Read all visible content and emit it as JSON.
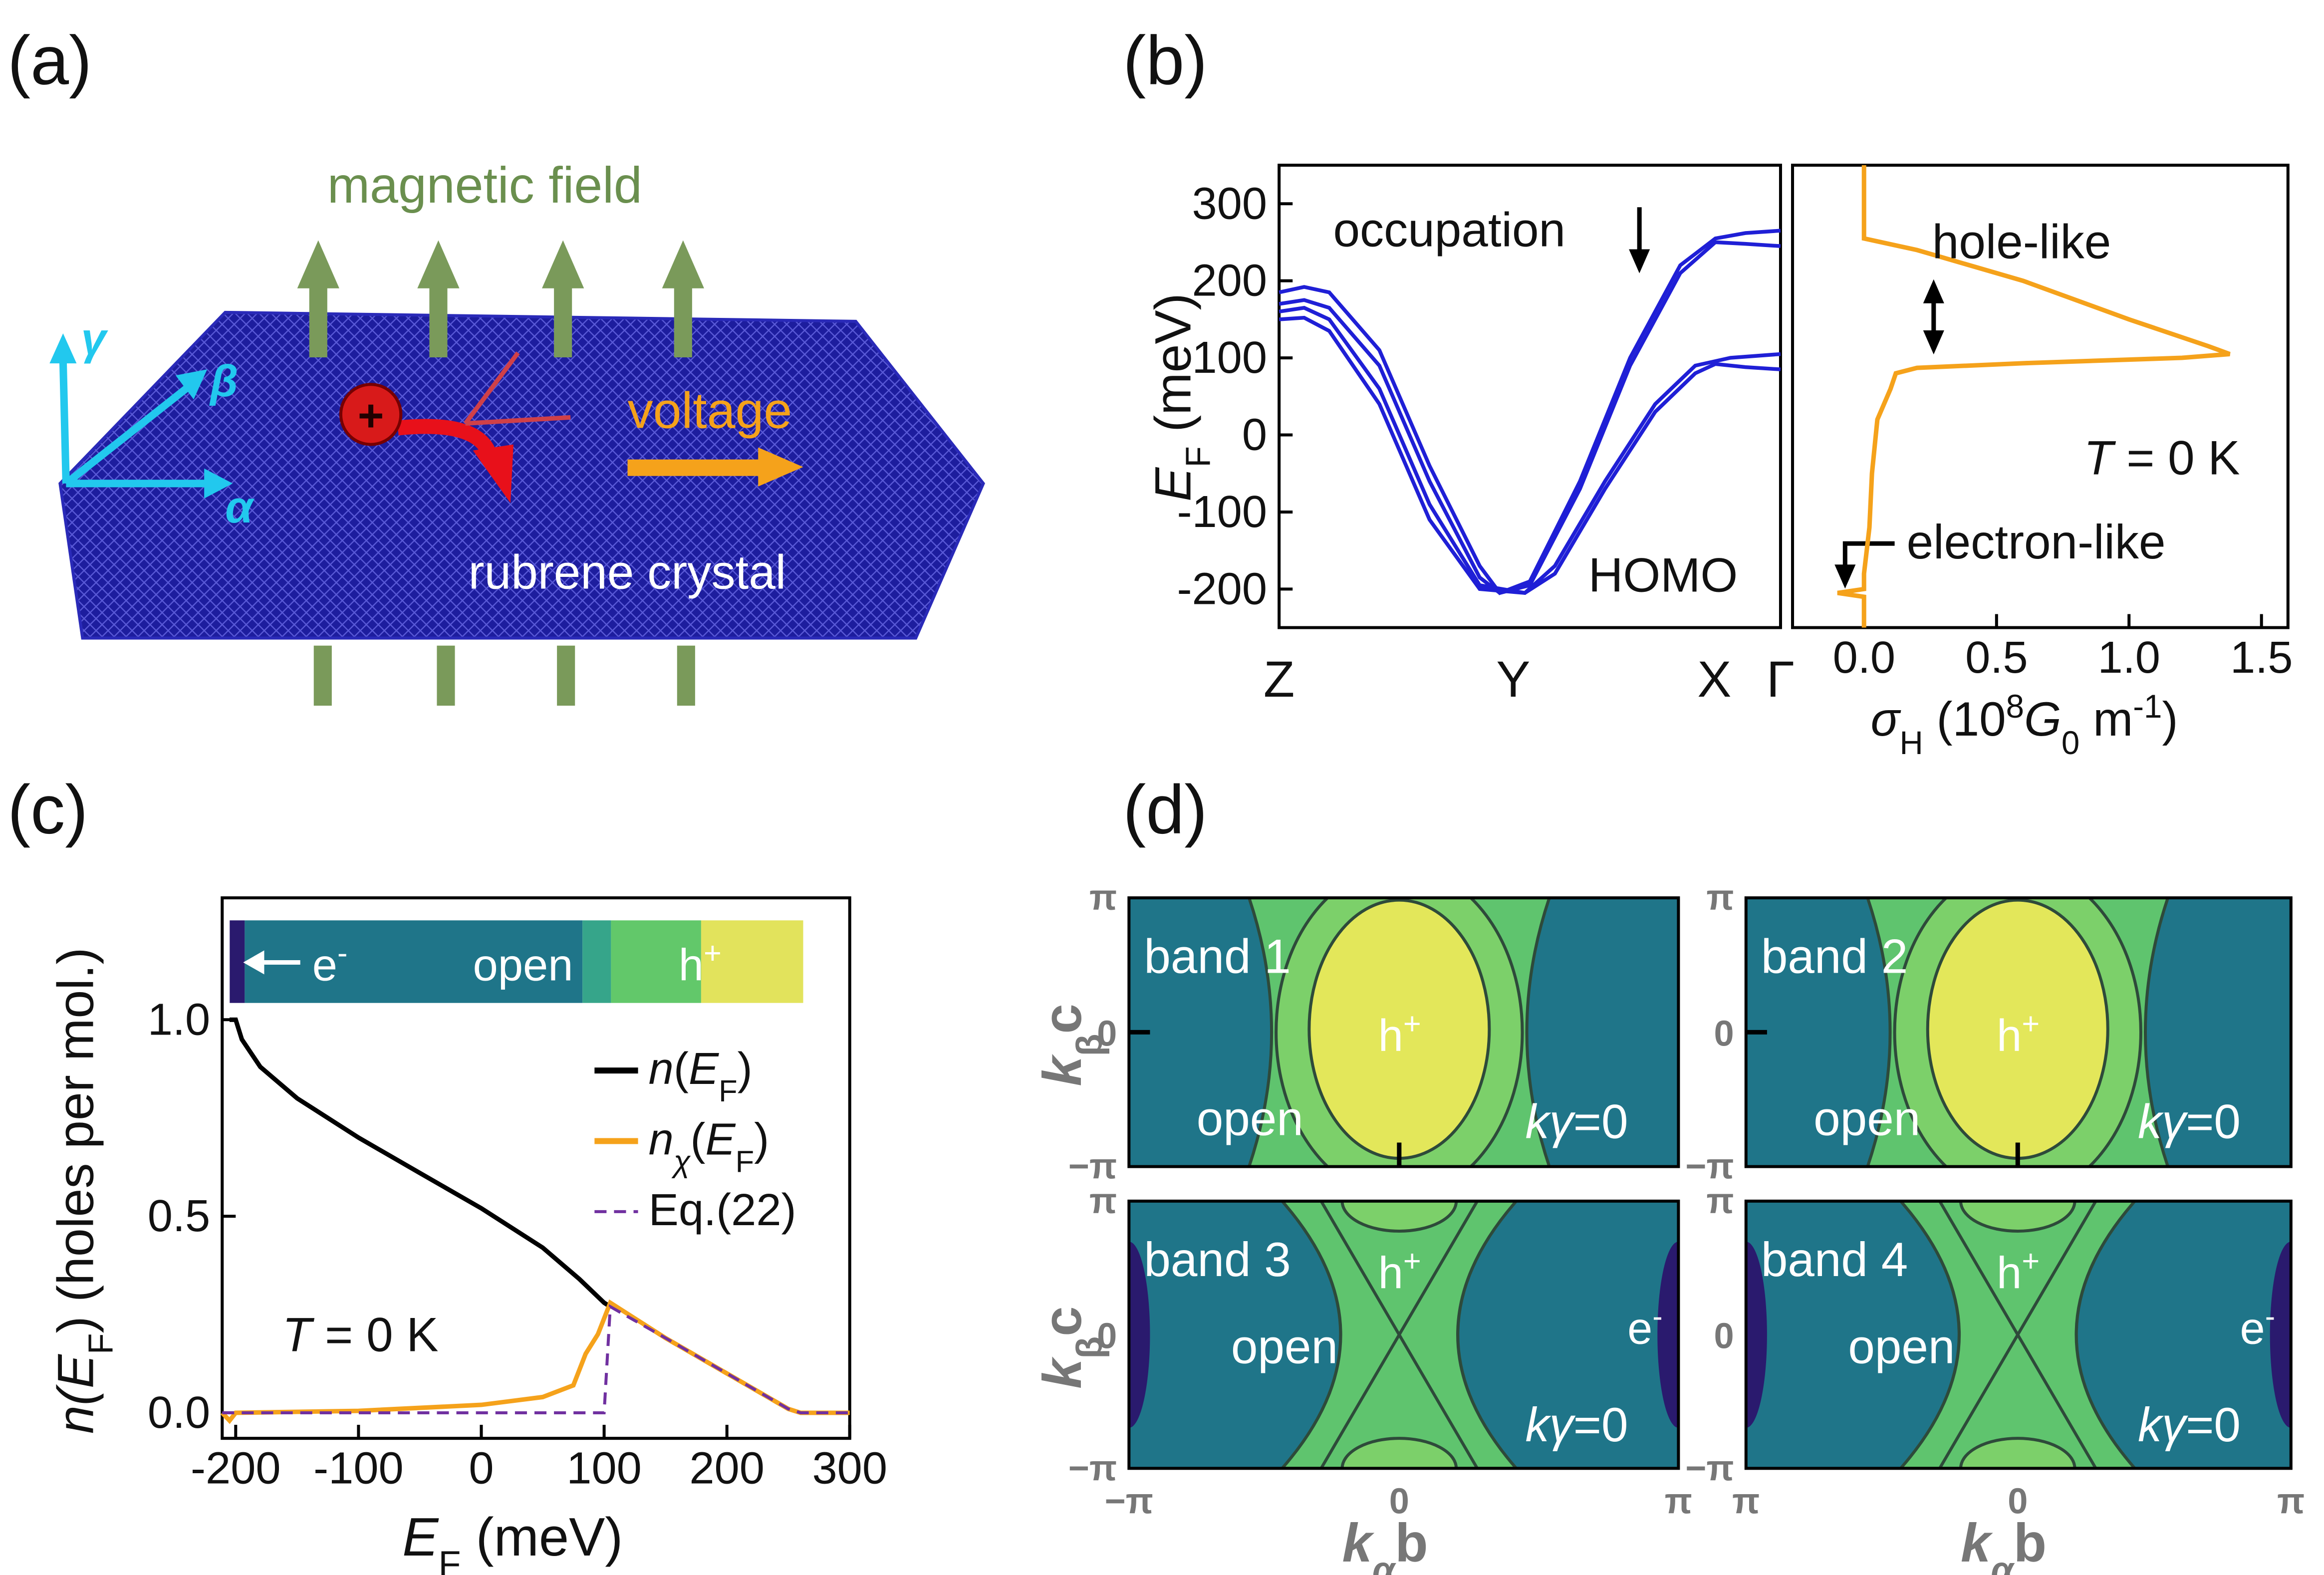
{
  "panel_a": {
    "label": "(a)",
    "field": "magnetic field",
    "voltage": "voltage",
    "crystal": "rubrene crystal",
    "gamma": "γ",
    "beta": "β",
    "alpha": "α"
  },
  "panel_b": {
    "label": "(b)"
  },
  "panel_c": {
    "label": "(c)",
    "bar_e": [
      "e",
      "-"
    ],
    "bar_open": "open",
    "bar_h": [
      "h",
      "+"
    ]
  },
  "chart_data": [
    {
      "type": "line",
      "ylabel": [
        "E",
        "F",
        " (meV)"
      ],
      "xlim": [
        0,
        1
      ],
      "xticks": [
        {
          "value": 0,
          "label": "Z"
        },
        {
          "value": 0.467,
          "label": "Y"
        },
        {
          "value": 0.868,
          "label": "X"
        },
        {
          "value": 1,
          "label": "Γ"
        }
      ],
      "ylim": [
        -250,
        350
      ],
      "yticks": [
        300,
        200,
        100,
        0,
        -100,
        -200
      ],
      "annotations": {
        "occupation": "occupation",
        "homo": "HOMO"
      },
      "series": [
        {
          "color": "#1f1fd6",
          "x": [
            0,
            0.05,
            0.1,
            0.2,
            0.3,
            0.4,
            0.44,
            0.5,
            0.6,
            0.7,
            0.8,
            0.87,
            0.93,
            1
          ],
          "values": [
            185,
            192,
            185,
            110,
            -40,
            -170,
            -205,
            -190,
            -60,
            100,
            220,
            255,
            262,
            265
          ]
        },
        {
          "color": "#1f1fd6",
          "x": [
            0,
            0.05,
            0.1,
            0.2,
            0.3,
            0.4,
            0.44,
            0.5,
            0.6,
            0.7,
            0.8,
            0.87,
            0.93,
            1
          ],
          "values": [
            170,
            175,
            165,
            90,
            -60,
            -185,
            -205,
            -195,
            -70,
            90,
            210,
            250,
            248,
            245
          ]
        },
        {
          "color": "#1f1fd6",
          "x": [
            0,
            0.05,
            0.1,
            0.2,
            0.3,
            0.4,
            0.49,
            0.55,
            0.65,
            0.75,
            0.83,
            0.9,
            1
          ],
          "values": [
            160,
            165,
            150,
            60,
            -90,
            -195,
            -205,
            -170,
            -60,
            40,
            90,
            100,
            105
          ]
        },
        {
          "color": "#1f1fd6",
          "x": [
            0,
            0.05,
            0.1,
            0.2,
            0.3,
            0.4,
            0.49,
            0.55,
            0.65,
            0.75,
            0.83,
            0.87,
            0.93,
            1
          ],
          "values": [
            150,
            152,
            135,
            40,
            -110,
            -200,
            -205,
            -180,
            -70,
            30,
            80,
            92,
            88,
            85
          ]
        }
      ]
    },
    {
      "type": "line",
      "xlabel": [
        "σ",
        "H",
        " (10",
        "8",
        "G",
        "0",
        " m",
        "-1",
        ")"
      ],
      "xlim": [
        -0.27,
        1.6
      ],
      "xticks": [
        {
          "value": 0,
          "label": "0.0"
        },
        0.5,
        {
          "value": 1,
          "label": "1.0"
        },
        1.5
      ],
      "ylim": [
        -250,
        350
      ],
      "annotations": {
        "hole": "hole-like",
        "temp": [
          "T",
          " = 0 K"
        ],
        "electron": "electron-like"
      },
      "series": [
        {
          "color": "#f5a21b",
          "x": [
            0,
            0,
            0.2,
            0.6,
            1.0,
            1.3,
            1.38,
            1.2,
            0.6,
            0.2,
            0.12,
            0.1,
            0.05,
            0.03,
            0.02,
            0,
            0,
            -0.1,
            0,
            0
          ],
          "values": [
            350,
            255,
            240,
            200,
            150,
            115,
            105,
            100,
            93,
            87,
            80,
            60,
            20,
            -50,
            -120,
            -180,
            -200,
            -205,
            -210,
            -250
          ]
        }
      ]
    },
    {
      "type": "line",
      "xlabel": [
        "E",
        "F",
        " (meV)"
      ],
      "ylabel": [
        "n(E",
        "F",
        ") (holes per mol.)"
      ],
      "xlim": [
        -211,
        300
      ],
      "xticks": [
        -200,
        -100,
        0,
        100,
        200,
        300
      ],
      "ylim": [
        -0.065,
        1.31
      ],
      "yticks": [
        {
          "value": 0,
          "label": "0.0"
        },
        0.5,
        {
          "value": 1,
          "label": "1.0"
        }
      ],
      "annotations": {
        "temp": [
          "T",
          " = 0 K"
        ]
      },
      "series": [
        {
          "name": [
            "n",
            "(",
            "E",
            "F",
            ")"
          ],
          "color": "#000000",
          "x": [
            -205,
            -200,
            -195,
            -180,
            -150,
            -100,
            -50,
            0,
            50,
            80,
            100,
            105
          ],
          "values": [
            1.0,
            1.0,
            0.95,
            0.88,
            0.8,
            0.7,
            0.61,
            0.52,
            0.42,
            0.34,
            0.28,
            0.27
          ]
        },
        {
          "name": [
            "n",
            "χ",
            "(",
            "E",
            "F",
            ")"
          ],
          "color": "#f5a21b",
          "x": [
            -211,
            -205,
            -200,
            -100,
            0,
            50,
            75,
            85,
            95,
            105,
            150,
            200,
            250,
            260,
            300
          ],
          "values": [
            0,
            -0.02,
            0,
            0.005,
            0.02,
            0.04,
            0.07,
            0.15,
            0.2,
            0.28,
            0.19,
            0.1,
            0.01,
            0,
            0
          ]
        },
        {
          "name": "Eq.(22)",
          "color": "#7030a0",
          "dashed": true,
          "x": [
            -211,
            100,
            105,
            150,
            200,
            250,
            260,
            300
          ],
          "values": [
            0,
            0,
            0.27,
            0.19,
            0.1,
            0.01,
            0,
            0
          ]
        }
      ]
    }
  ],
  "panel_d": {
    "label": "(d)",
    "xlabel": [
      "k",
      "α",
      "b"
    ],
    "ylabel": [
      "k",
      "β",
      "c"
    ],
    "yticks": [
      "π",
      "0",
      "−π"
    ],
    "maps": [
      {
        "band": "band 1",
        "h": [
          "h",
          "+"
        ],
        "open": "open",
        "k": [
          "k",
          "γ",
          "=0"
        ]
      },
      {
        "band": "band 2",
        "h": [
          "h",
          "+"
        ],
        "open": "open",
        "k": [
          "k",
          "γ",
          "=0"
        ]
      },
      {
        "band": "band 3",
        "h": [
          "h",
          "+"
        ],
        "open": "open",
        "k": [
          "k",
          "γ",
          "=0"
        ],
        "e": [
          "e",
          "-"
        ],
        "xticks": [
          "−π",
          "0",
          "π"
        ]
      },
      {
        "band": "band 4",
        "h": [
          "h",
          "+"
        ],
        "open": "open",
        "k": [
          "k",
          "γ",
          "=0"
        ],
        "e": [
          "e",
          "-"
        ],
        "xticks": [
          "π",
          "0",
          "π"
        ]
      }
    ]
  }
}
